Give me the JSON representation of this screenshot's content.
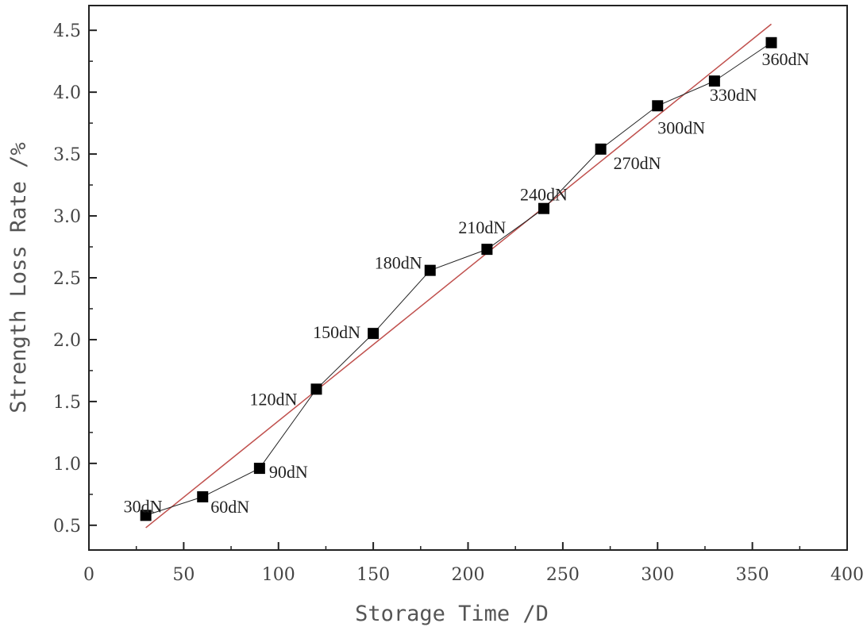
{
  "chart_data": {
    "type": "scatter",
    "xlabel": "Storage Time /D",
    "ylabel": "Strength Loss Rate /%",
    "xlim": [
      0,
      400
    ],
    "ylim": [
      0.3,
      4.7
    ],
    "x_ticks": [
      0,
      50,
      100,
      150,
      200,
      250,
      300,
      350,
      400
    ],
    "y_ticks": [
      0.5,
      1.0,
      1.5,
      2.0,
      2.5,
      3.0,
      3.5,
      4.0,
      4.5
    ],
    "x_tick_labels": [
      "0",
      "50",
      "100",
      "150",
      "200",
      "250",
      "300",
      "350",
      "400"
    ],
    "y_tick_labels": [
      "0.5",
      "1.0",
      "1.5",
      "2.0",
      "2.5",
      "3.0",
      "3.5",
      "4.0",
      "4.5"
    ],
    "grid": false,
    "series": [
      {
        "x": [
          30,
          60,
          90,
          120,
          150,
          180,
          210,
          240,
          270,
          300,
          330,
          360
        ],
        "y": [
          0.58,
          0.73,
          0.96,
          1.6,
          2.05,
          2.56,
          2.73,
          3.06,
          3.54,
          3.89,
          4.09,
          4.4
        ],
        "labels": [
          "30dN",
          "60dN",
          "90dN",
          "120dN",
          "150dN",
          "180dN",
          "210dN",
          "240dN",
          "270dN",
          "300dN",
          "330dN",
          "360dN"
        ],
        "color": "#000000",
        "marker": "square",
        "connected": true
      }
    ],
    "fit_line": {
      "x": [
        30,
        360
      ],
      "y": [
        0.48,
        4.55
      ],
      "color": "#c0504d"
    }
  }
}
